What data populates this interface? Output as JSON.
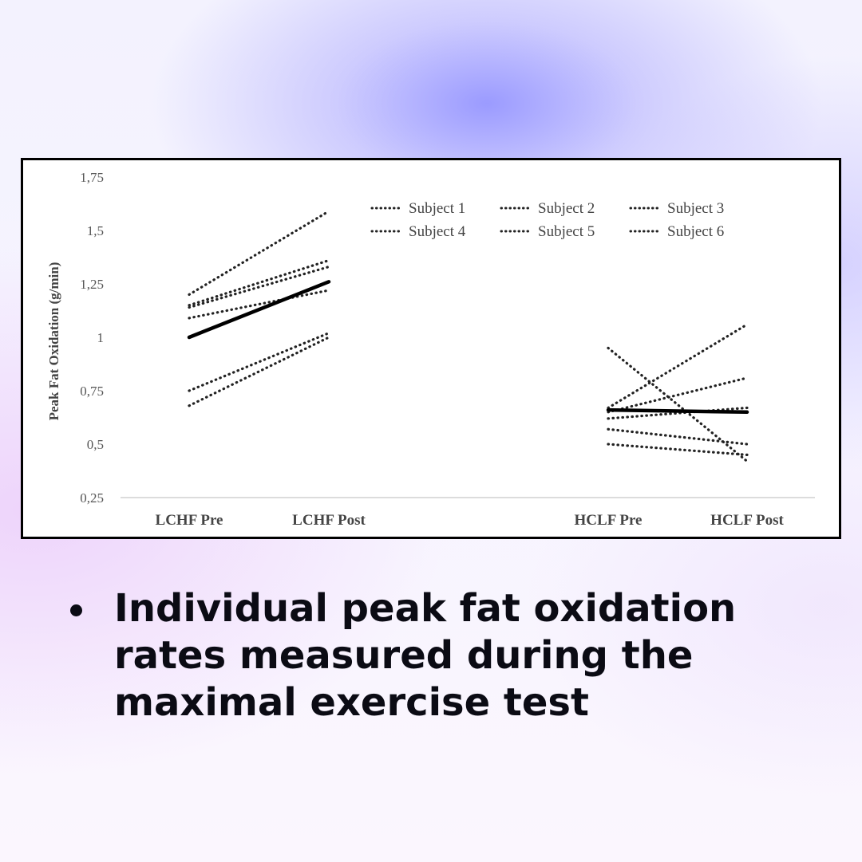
{
  "caption": {
    "text": "Individual peak fat oxidation rates measured during the maximal exercise test"
  },
  "chart_data": {
    "type": "line",
    "ylabel": "Peak Fat Oxidation (g/min)",
    "xlabel": "",
    "ylim": [
      0.25,
      1.75
    ],
    "yticks": [
      "1,75",
      "1,5",
      "1,25",
      "1",
      "0,75",
      "0,5",
      "0,25"
    ],
    "ytick_values": [
      1.75,
      1.5,
      1.25,
      1.0,
      0.75,
      0.5,
      0.25
    ],
    "categories": [
      "LCHF Pre",
      "LCHF Post",
      "HCLF Pre",
      "HCLF Post"
    ],
    "grid": false,
    "legend_position": "top-right",
    "groups": [
      {
        "categories": [
          "LCHF Pre",
          "LCHF Post"
        ]
      },
      {
        "categories": [
          "HCLF Pre",
          "HCLF Post"
        ]
      }
    ],
    "series": [
      {
        "name": "Subject 1",
        "style": "dotted",
        "lchf": [
          1.2,
          1.59
        ],
        "hclf": [
          0.95,
          0.42
        ]
      },
      {
        "name": "Subject 2",
        "style": "dotted",
        "lchf": [
          1.15,
          1.36
        ],
        "hclf": [
          0.67,
          1.06
        ]
      },
      {
        "name": "Subject 3",
        "style": "dotted",
        "lchf": [
          1.14,
          1.33
        ],
        "hclf": [
          0.65,
          0.81
        ]
      },
      {
        "name": "Subject 4",
        "style": "dotted",
        "lchf": [
          1.09,
          1.22
        ],
        "hclf": [
          0.62,
          0.67
        ]
      },
      {
        "name": "Subject 5",
        "style": "dotted",
        "lchf": [
          0.75,
          1.02
        ],
        "hclf": [
          0.57,
          0.5
        ]
      },
      {
        "name": "Subject 6",
        "style": "dotted",
        "lchf": [
          0.68,
          1.0
        ],
        "hclf": [
          0.5,
          0.45
        ]
      },
      {
        "style": "solid",
        "lchf": [
          1.0,
          1.26
        ],
        "hclf": [
          0.66,
          0.65
        ]
      }
    ]
  }
}
